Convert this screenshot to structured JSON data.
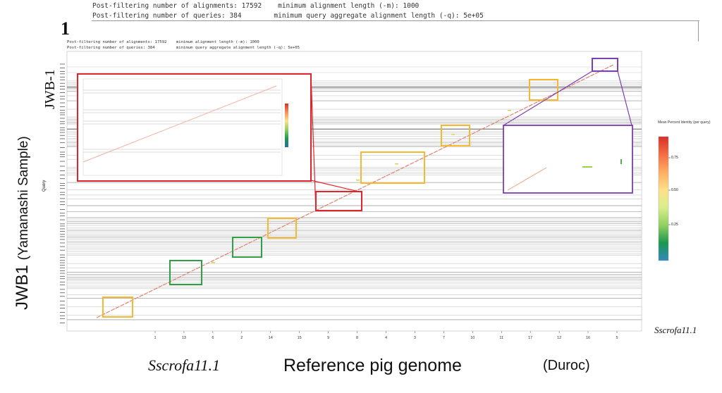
{
  "outer_caption": {
    "line1": "Post-filtering number of alignments: 17592    minimum alignment length (-m): 1000",
    "line2": "Post-filtering number of queries: 384        minimum query aggregate alignment length (-q): 5e+05"
  },
  "big_one": "1",
  "inner_caption": {
    "line1": "Post-filtering number of alignments: 17592    minimum alignment length (-m): 1000",
    "line2": "Post-filtering number of queries: 384         minimum query aggregate alignment length (-q): 5e+05"
  },
  "y_label_main": "JWB1",
  "y_label_sub": "(Yamanashi Sample)",
  "y_label_top": "JWB-1",
  "query_axis_label": "Query",
  "x_caption": {
    "genome_italic": "Sscrofa11.1",
    "reference": "Reference pig genome",
    "breed": "(Duroc)"
  },
  "x_axis_right_label": "Sscrofa11.1",
  "colorbar": {
    "title": "Mean Percent Identity (per query)",
    "ticks": [
      "0.75",
      "0.50",
      "0.25"
    ]
  },
  "colors": {
    "plot_bg": "#e6e6e6",
    "diagonal": "#e4806a",
    "box_yellow": "#f5b82e",
    "box_green": "#2ea043",
    "box_red": "#e0242b",
    "box_purple": "#7a3fb0"
  },
  "chart_data": {
    "type": "scatter",
    "title": "",
    "xlabel": "Sscrofa11.1",
    "ylabel": "Query",
    "x_tick_labels": [
      "1",
      "13",
      "6",
      "2",
      "14",
      "15",
      "9",
      "8",
      "4",
      "3",
      "7",
      "10",
      "11",
      "17",
      "12",
      "16",
      "5"
    ],
    "colorbar_ticks": [
      0.75,
      0.5,
      0.25
    ],
    "series": [
      {
        "values": "main diagonal alignment from bottom-left to top-right"
      }
    ],
    "highlight_boxes": [
      {
        "color": "yellow"
      },
      {
        "color": "green"
      },
      {
        "color": "green"
      },
      {
        "color": "yellow"
      },
      {
        "color": "red"
      },
      {
        "color": "yellow"
      },
      {
        "color": "yellow"
      },
      {
        "color": "yellow"
      },
      {
        "color": "purple"
      }
    ]
  }
}
